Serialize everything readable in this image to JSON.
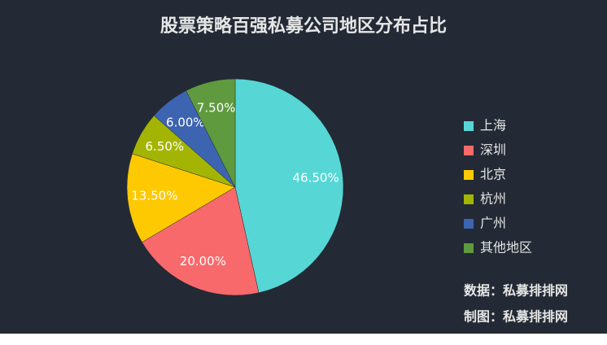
{
  "chart_data": {
    "type": "pie",
    "title": "股票策略百强私募公司地区分布占比",
    "categories": [
      "上海",
      "深圳",
      "北京",
      "杭州",
      "广州",
      "其他地区"
    ],
    "values": [
      46.5,
      20,
      13.5,
      6.5,
      6,
      7.5
    ],
    "value_labels": [
      "46.50%",
      "20.00%",
      "13.50%",
      "6.50%",
      "6.00%",
      "7.50%"
    ],
    "colors": [
      "#56d7d5",
      "#f8696b",
      "#ffc902",
      "#a3b502",
      "#3d64b1",
      "#5f9a3e"
    ],
    "legend": "right",
    "notes": [
      "数据：私募排排网",
      "制图：私募排排网"
    ]
  }
}
